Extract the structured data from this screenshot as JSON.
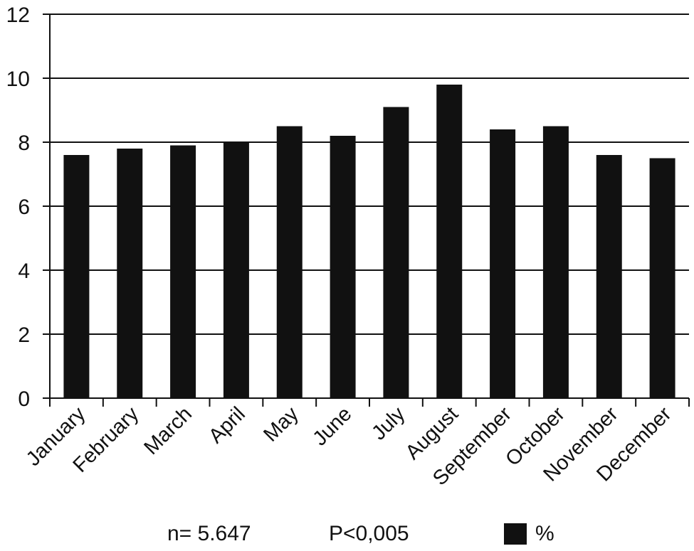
{
  "chart_data": {
    "type": "bar",
    "categories": [
      "January",
      "February",
      "March",
      "April",
      "May",
      "June",
      "July",
      "August",
      "September",
      "October",
      "November",
      "December"
    ],
    "series": [
      {
        "name": "%",
        "values": [
          7.6,
          7.8,
          7.9,
          8.0,
          8.5,
          8.2,
          9.1,
          9.8,
          8.4,
          8.5,
          7.6,
          7.5
        ]
      }
    ],
    "title": "",
    "xlabel": "",
    "ylabel": "",
    "ylim": [
      0,
      12
    ],
    "yticks": [
      "0",
      "2",
      "4",
      "6",
      "8",
      "10",
      "12"
    ],
    "grid": "horizontal",
    "legend_position": "bottom-right",
    "bar_color": "#111111"
  },
  "footer": {
    "n_text": "n= 5.647",
    "p_text": "P<0,005"
  }
}
